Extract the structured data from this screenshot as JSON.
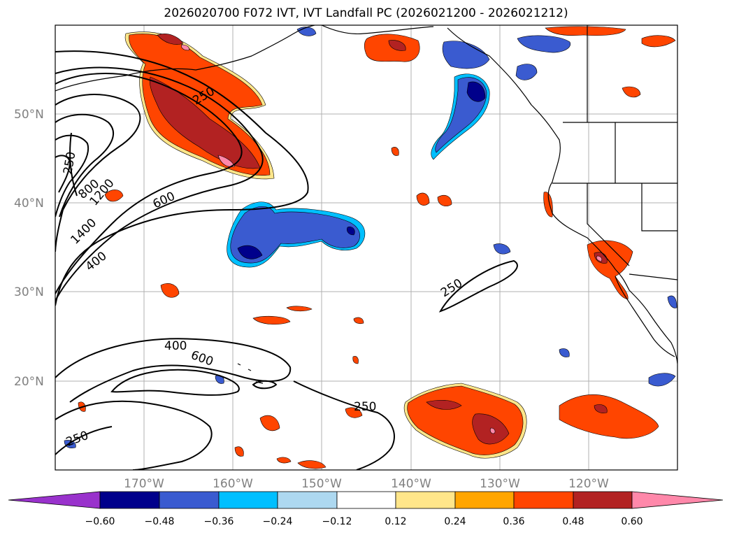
{
  "title": "2026020700 F072 IVT, IVT Landfall PC (2026021200 - 2026021212)",
  "latitude_labels": [
    "50°N",
    "40°N",
    "30°N",
    "20°N"
  ],
  "longitude_labels": [
    "170°W",
    "160°W",
    "150°W",
    "140°W",
    "130°W",
    "120°W"
  ],
  "contour_labels": [
    "250",
    "250",
    "800",
    "1200",
    "1400",
    "600",
    "400",
    "250",
    "400",
    "600",
    "250",
    "250"
  ],
  "colorbar": {
    "ticks": [
      "−0.60",
      "−0.48",
      "−0.36",
      "−0.24",
      "−0.12",
      "0.12",
      "0.24",
      "0.36",
      "0.48",
      "0.60"
    ],
    "colors": [
      "#9932cc",
      "#00008b",
      "#3a5bd0",
      "#00bfff",
      "#add8f0",
      "#ffffff",
      "#ffe68a",
      "#ffa500",
      "#ff4500",
      "#b22222",
      "#ff88aa"
    ]
  },
  "colors": {
    "ocean": "#ffffff",
    "grid": "#b0b0b0",
    "contour": "#000000",
    "coast": "#000000"
  }
}
